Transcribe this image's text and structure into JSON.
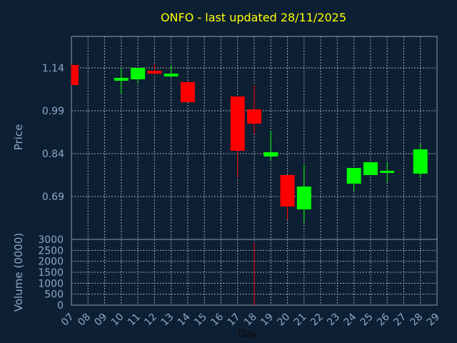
{
  "chart_data": {
    "type": "candlestick",
    "title": "ONFO - last updated 28/11/2025",
    "xlabel": "Day",
    "ylabel_price": "Price",
    "ylabel_volume": "Volume (0000)",
    "x_ticks": [
      "07",
      "08",
      "09",
      "10",
      "11",
      "12",
      "13",
      "14",
      "15",
      "16",
      "17",
      "18",
      "19",
      "20",
      "21",
      "22",
      "23",
      "24",
      "25",
      "26",
      "27",
      "28",
      "29"
    ],
    "price_ticks": [
      "1.14",
      "0.99",
      "0.84",
      "0.69"
    ],
    "price_tick_values": [
      1.14,
      0.99,
      0.84,
      0.69
    ],
    "price_ylim": [
      0.54,
      1.25
    ],
    "volume_ticks": [
      "3000",
      "2500",
      "2000",
      "1500",
      "1000",
      "500",
      "0"
    ],
    "volume_tick_values": [
      3000,
      2500,
      2000,
      1500,
      1000,
      500,
      0
    ],
    "volume_ylim": [
      0,
      3000
    ],
    "candles": [
      {
        "day": 7,
        "open": 1.15,
        "high": 1.15,
        "low": 1.08,
        "close": 1.08
      },
      {
        "day": 10,
        "open": 1.095,
        "high": 1.14,
        "low": 1.05,
        "close": 1.105
      },
      {
        "day": 11,
        "open": 1.1,
        "high": 1.14,
        "low": 1.085,
        "close": 1.14
      },
      {
        "day": 12,
        "open": 1.13,
        "high": 1.155,
        "low": 1.115,
        "close": 1.12
      },
      {
        "day": 13,
        "open": 1.11,
        "high": 1.15,
        "low": 1.11,
        "close": 1.12
      },
      {
        "day": 14,
        "open": 1.09,
        "high": 1.095,
        "low": 1.02,
        "close": 1.02
      },
      {
        "day": 17,
        "open": 1.04,
        "high": 1.04,
        "low": 0.755,
        "close": 0.85
      },
      {
        "day": 18,
        "open": 0.995,
        "high": 1.08,
        "low": 0.91,
        "close": 0.945
      },
      {
        "day": 19,
        "open": 0.83,
        "high": 0.92,
        "low": 0.815,
        "close": 0.845
      },
      {
        "day": 20,
        "open": 0.765,
        "high": 0.765,
        "low": 0.61,
        "close": 0.655
      },
      {
        "day": 21,
        "open": 0.645,
        "high": 0.8,
        "low": 0.6,
        "close": 0.725
      },
      {
        "day": 24,
        "open": 0.735,
        "high": 0.79,
        "low": 0.71,
        "close": 0.79
      },
      {
        "day": 25,
        "open": 0.765,
        "high": 0.81,
        "low": 0.765,
        "close": 0.81
      },
      {
        "day": 26,
        "open": 0.775,
        "high": 0.81,
        "low": 0.74,
        "close": 0.78
      },
      {
        "day": 28,
        "open": 0.77,
        "high": 0.875,
        "low": 0.755,
        "close": 0.855
      }
    ],
    "volume": [
      {
        "day": 18,
        "value": 2850
      }
    ],
    "colors": {
      "up": "#00ff00",
      "down": "#ff0000",
      "background": "#0d1f33",
      "title": "#ffff00",
      "axis_text": "#8fa8c8",
      "grid": "#a9a9a9"
    },
    "grid": true
  }
}
